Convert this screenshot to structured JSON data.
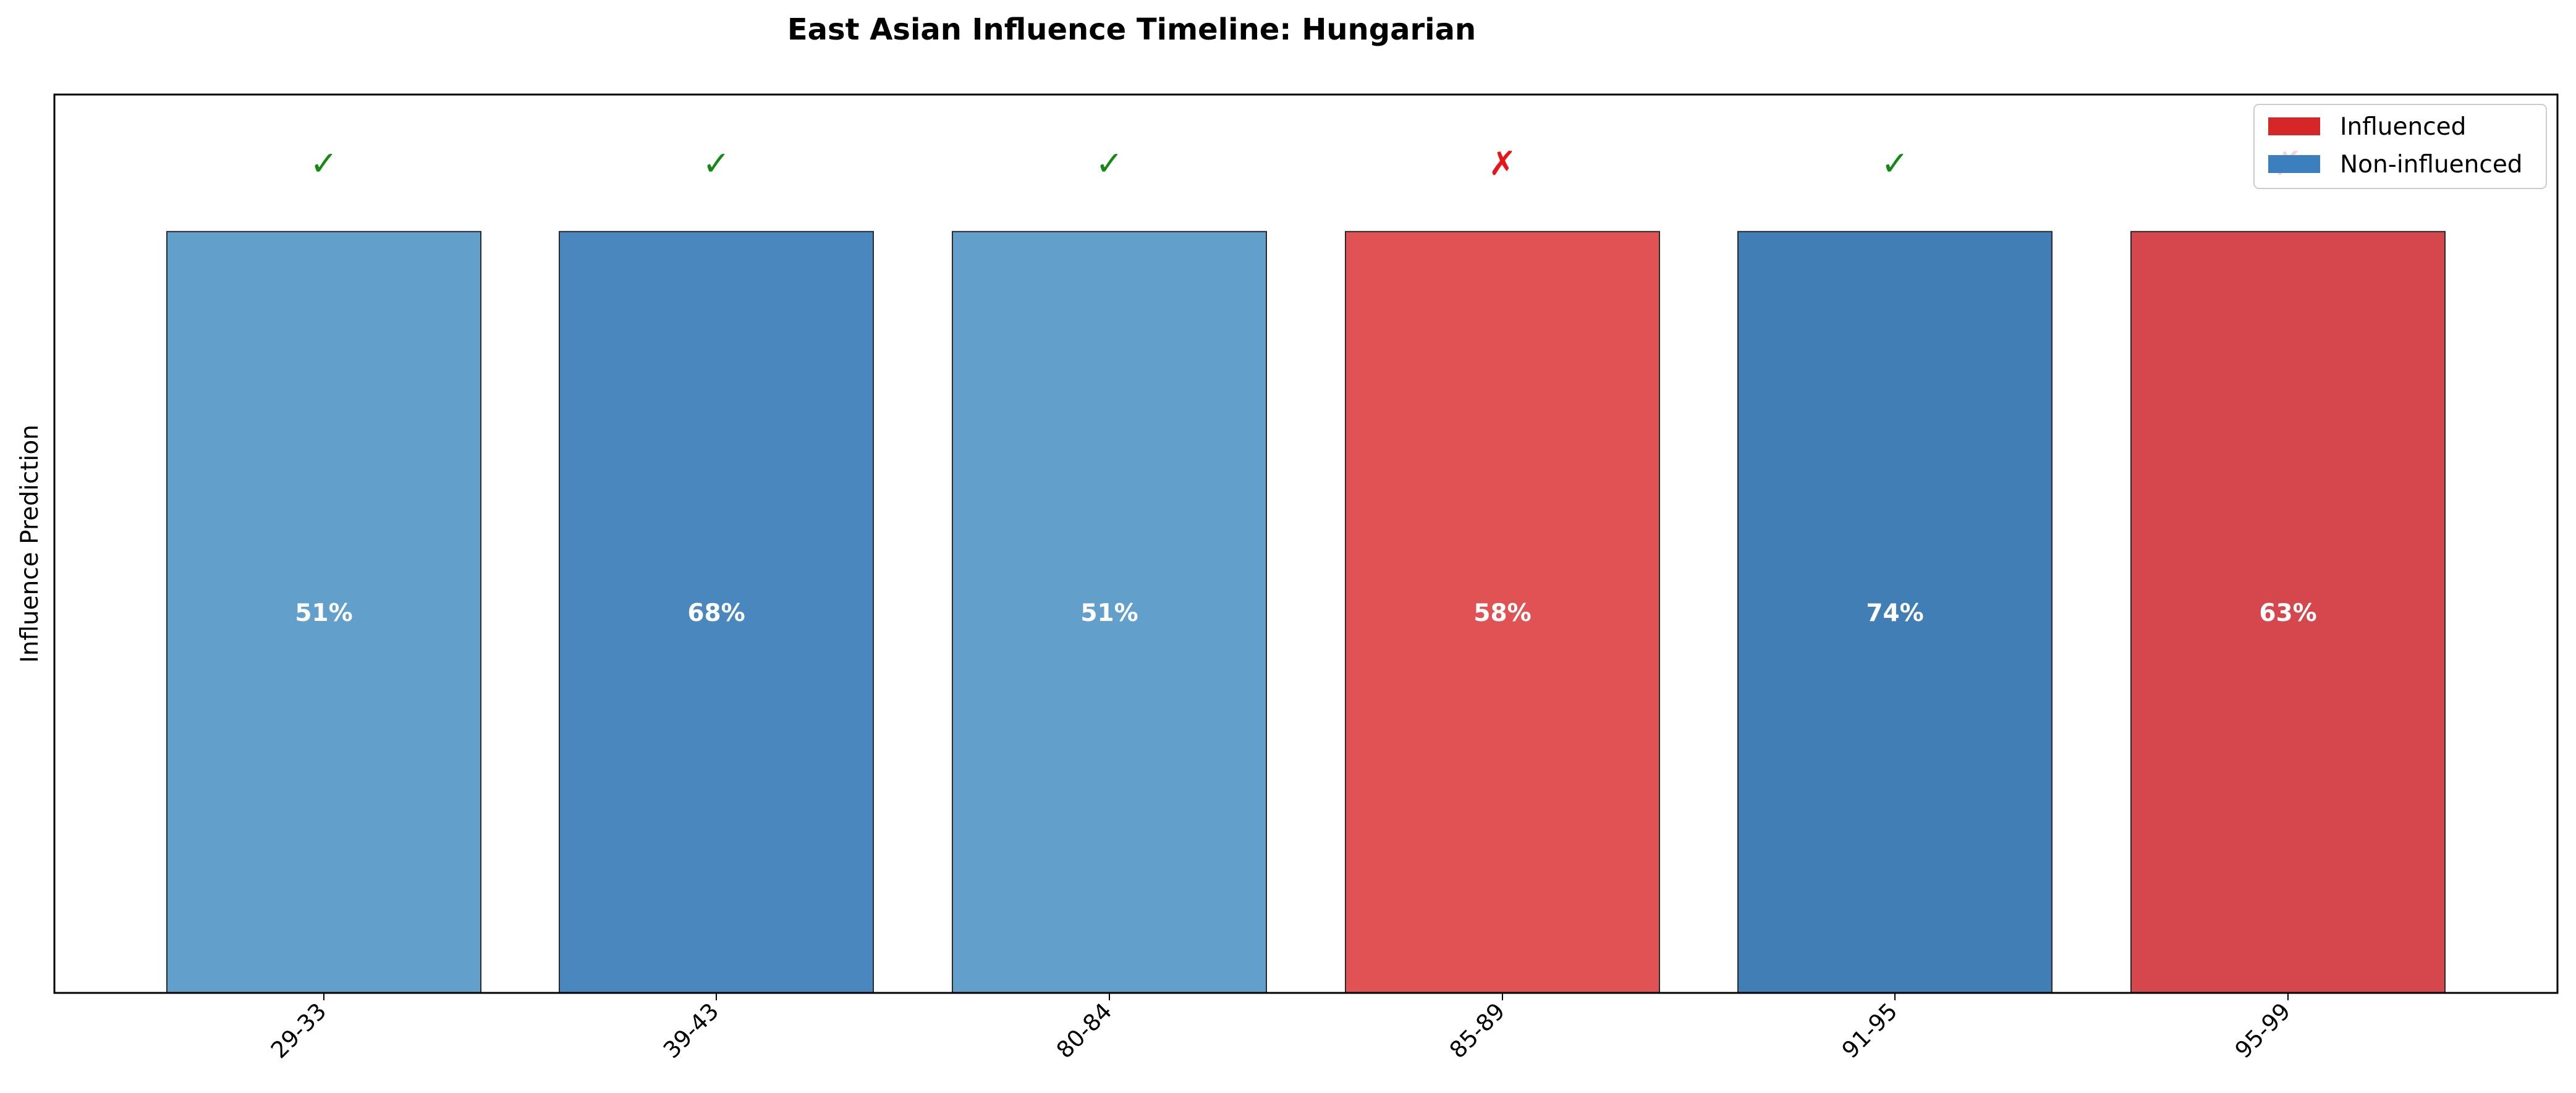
{
  "chart_data": {
    "type": "bar",
    "title": "East Asian Influence Timeline: Hungarian",
    "xlabel": "",
    "ylabel": "Influence Prediction",
    "categories": [
      "29-33",
      "39-43",
      "80-84",
      "85-89",
      "91-95",
      "95-99"
    ],
    "values": [
      1,
      1,
      1,
      1,
      1,
      1
    ],
    "ylim": [
      0,
      1.18
    ],
    "data_labels": [
      "51%",
      "68%",
      "51%",
      "58%",
      "74%",
      "63%"
    ],
    "confidence": [
      0.51,
      0.68,
      0.51,
      0.58,
      0.74,
      0.63
    ],
    "predicted_class": [
      "Non-influenced",
      "Non-influenced",
      "Non-influenced",
      "Influenced",
      "Non-influenced",
      "Influenced"
    ],
    "markers": [
      "✓",
      "✓",
      "✓",
      "✗",
      "✓",
      "✗"
    ],
    "marker_colors": [
      "#138a13",
      "#138a13",
      "#138a13",
      "#e8141a",
      "#138a13",
      "#e8141a"
    ],
    "bar_colors": [
      "#62a0cb",
      "#4987be",
      "#62a0cb",
      "#e05253",
      "#407eb5",
      "#d6474d"
    ],
    "legend": {
      "placement": "top-right",
      "entries": [
        {
          "label": "Influenced",
          "color": "#d62728"
        },
        {
          "label": "Non-influenced",
          "color": "#3b7fbf"
        }
      ]
    },
    "grid": false,
    "yticks_visible": false
  }
}
